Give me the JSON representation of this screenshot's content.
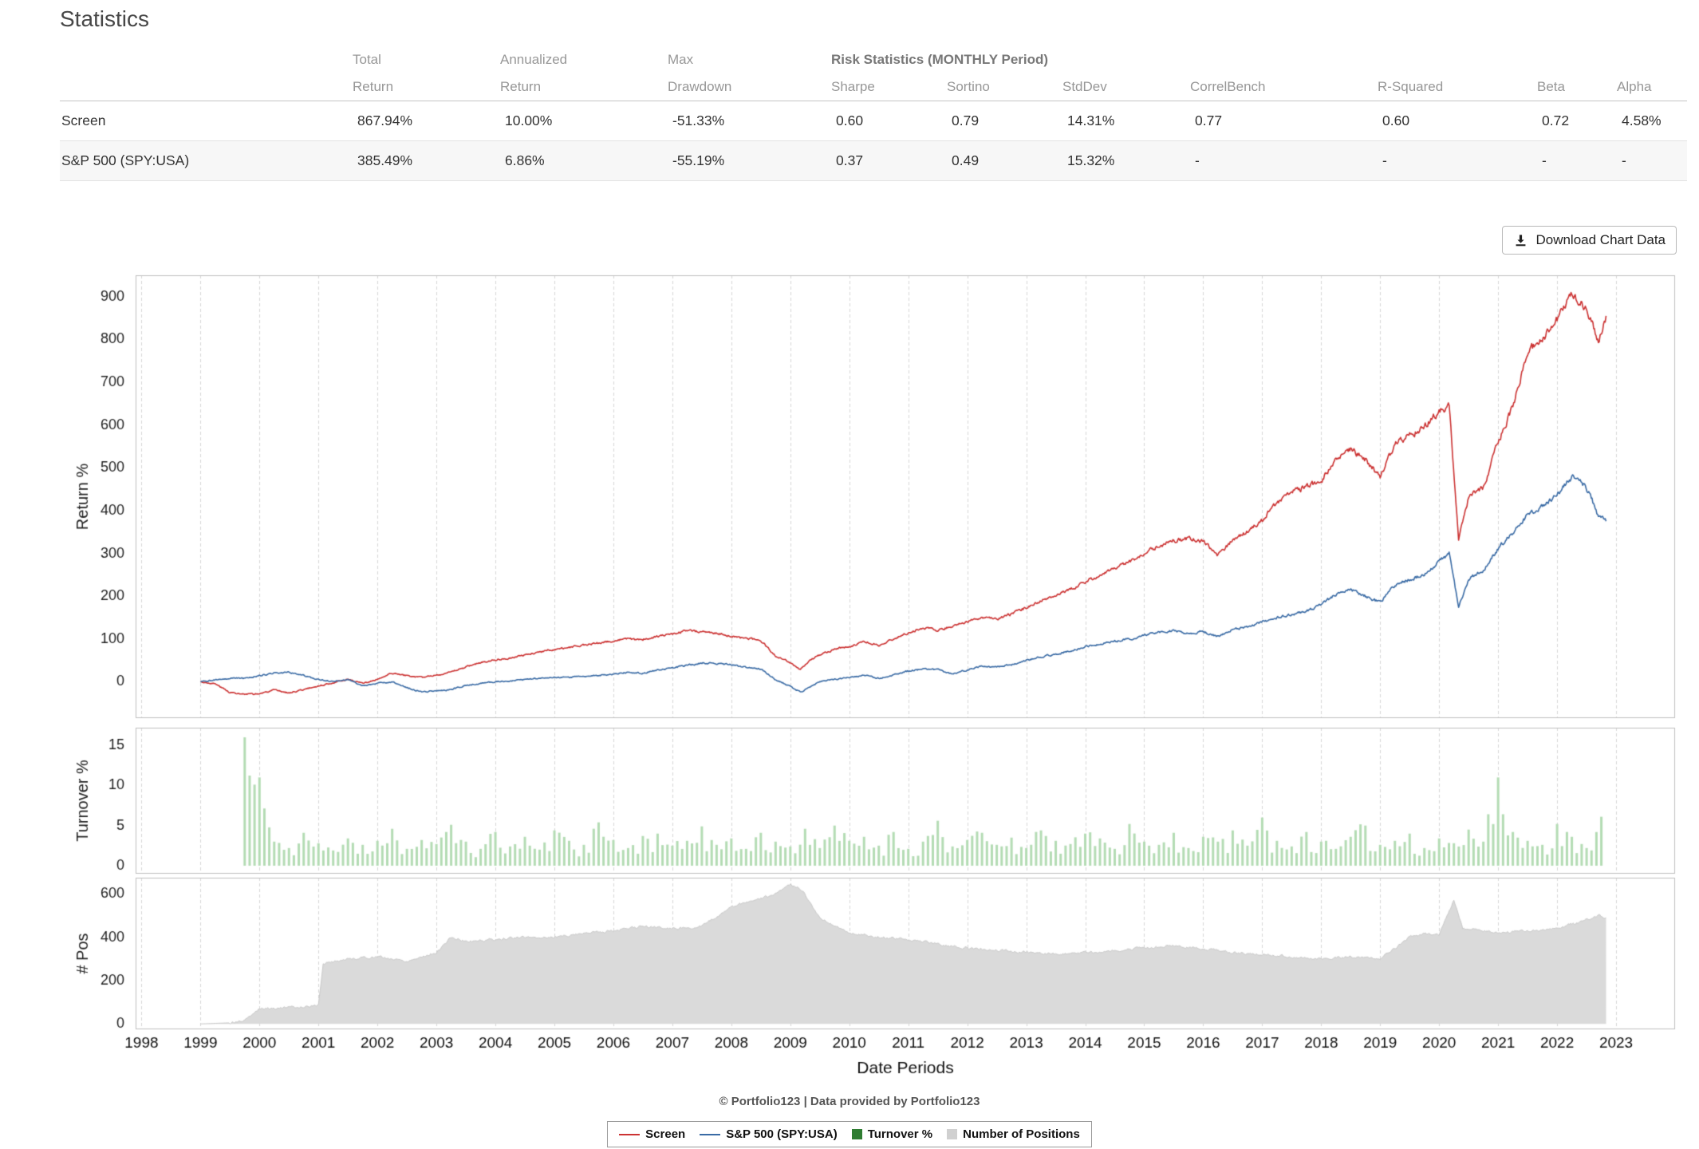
{
  "page_title": "Statistics",
  "toolbar": {
    "download_label": "Download Chart Data"
  },
  "table": {
    "headers": {
      "total_l1": "Total",
      "total_l2": "Return",
      "annualized_l1": "Annualized",
      "annualized_l2": "Return",
      "max_l1": "Max",
      "max_l2": "Drawdown",
      "risk_group": "Risk Statistics (MONTHLY Period)",
      "sharpe": "Sharpe",
      "sortino": "Sortino",
      "stddev": "StdDev",
      "correlbench": "CorrelBench",
      "r_squared": "R-Squared",
      "beta": "Beta",
      "alpha": "Alpha"
    },
    "rows": [
      {
        "name": "Screen",
        "total_return": "867.94%",
        "annualized_return": "10.00%",
        "max_drawdown": "-51.33%",
        "sharpe": "0.60",
        "sortino": "0.79",
        "stddev": "14.31%",
        "correlbench": "0.77",
        "r_squared": "0.60",
        "beta": "0.72",
        "alpha": "4.58%"
      },
      {
        "name": "S&P 500 (SPY:USA)",
        "total_return": "385.49%",
        "annualized_return": "6.86%",
        "max_drawdown": "-55.19%",
        "sharpe": "0.37",
        "sortino": "0.49",
        "stddev": "15.32%",
        "correlbench": "-",
        "r_squared": "-",
        "beta": "-",
        "alpha": "-"
      }
    ]
  },
  "chart_data": {
    "type": "line",
    "xlabel": "Date Periods",
    "xlim": [
      1997.9,
      2024.0
    ],
    "x_ticks": [
      1998,
      1999,
      2000,
      2001,
      2002,
      2003,
      2004,
      2005,
      2006,
      2007,
      2008,
      2009,
      2010,
      2011,
      2012,
      2013,
      2014,
      2015,
      2016,
      2017,
      2018,
      2019,
      2020,
      2021,
      2022,
      2023
    ],
    "grid": "vertical-dashed",
    "panels": [
      {
        "name": "returns",
        "kind": "line",
        "ylabel": "Return %",
        "ylim": [
          -85,
          950
        ],
        "yticks": [
          0,
          100,
          200,
          300,
          400,
          500,
          600,
          700,
          800,
          900
        ],
        "x": [
          1999,
          1999.25,
          1999.5,
          1999.75,
          2000,
          2000.25,
          2000.5,
          2000.75,
          2001,
          2001.25,
          2001.5,
          2001.75,
          2002,
          2002.25,
          2002.5,
          2002.75,
          2003,
          2003.25,
          2003.5,
          2003.75,
          2004,
          2004.25,
          2004.5,
          2004.75,
          2005,
          2005.25,
          2005.5,
          2005.75,
          2006,
          2006.25,
          2006.5,
          2006.75,
          2007,
          2007.25,
          2007.5,
          2007.75,
          2008,
          2008.25,
          2008.5,
          2008.75,
          2009,
          2009.17,
          2009.33,
          2009.5,
          2009.75,
          2010,
          2010.25,
          2010.5,
          2010.75,
          2011,
          2011.25,
          2011.5,
          2011.75,
          2012,
          2012.25,
          2012.5,
          2012.75,
          2013,
          2013.25,
          2013.5,
          2013.75,
          2014,
          2014.25,
          2014.5,
          2014.75,
          2015,
          2015.25,
          2015.5,
          2015.75,
          2016,
          2016.25,
          2016.5,
          2016.75,
          2017,
          2017.25,
          2017.5,
          2017.75,
          2018,
          2018.25,
          2018.5,
          2018.75,
          2019,
          2019.25,
          2019.5,
          2019.75,
          2020,
          2020.17,
          2020.33,
          2020.5,
          2020.75,
          2021,
          2021.25,
          2021.5,
          2021.75,
          2022,
          2022.25,
          2022.42,
          2022.58,
          2022.7,
          2022.83
        ],
        "series": [
          {
            "name": "Screen",
            "color": "#cc3333",
            "y": [
              0,
              -5,
              -25,
              -30,
              -28,
              -20,
              -26,
              -18,
              -10,
              -2,
              6,
              -4,
              5,
              20,
              14,
              10,
              16,
              22,
              35,
              45,
              52,
              56,
              62,
              70,
              76,
              80,
              86,
              90,
              96,
              100,
              99,
              105,
              112,
              120,
              117,
              114,
              106,
              102,
              96,
              60,
              45,
              28,
              50,
              62,
              76,
              82,
              95,
              86,
              100,
              114,
              126,
              120,
              130,
              140,
              150,
              146,
              158,
              174,
              190,
              202,
              216,
              234,
              250,
              264,
              280,
              300,
              318,
              330,
              334,
              328,
              296,
              330,
              352,
              376,
              420,
              444,
              455,
              470,
              520,
              545,
              520,
              480,
              556,
              576,
              596,
              632,
              645,
              335,
              430,
              455,
              560,
              645,
              770,
              800,
              845,
              900,
              880,
              850,
              790,
              855
            ]
          },
          {
            "name": "S&P 500 (SPY:USA)",
            "color": "#3a6ba5",
            "y": [
              0,
              4,
              9,
              8,
              14,
              20,
              22,
              15,
              5,
              0,
              6,
              -10,
              -4,
              0,
              -14,
              -24,
              -22,
              -18,
              -8,
              -4,
              0,
              2,
              5,
              8,
              10,
              10,
              13,
              15,
              18,
              22,
              20,
              27,
              32,
              38,
              44,
              42,
              40,
              34,
              30,
              5,
              -10,
              -25,
              -12,
              0,
              6,
              10,
              15,
              8,
              16,
              25,
              30,
              28,
              18,
              28,
              37,
              34,
              40,
              50,
              58,
              65,
              72,
              82,
              88,
              95,
              100,
              108,
              115,
              120,
              112,
              118,
              105,
              122,
              128,
              140,
              150,
              158,
              165,
              180,
              205,
              215,
              200,
              185,
              225,
              240,
              250,
              280,
              300,
              175,
              240,
              262,
              310,
              350,
              390,
              410,
              440,
              478,
              470,
              430,
              385,
              375
            ]
          }
        ]
      },
      {
        "name": "turnover",
        "kind": "bar",
        "ylabel": "Turnover %",
        "ylim": [
          -1,
          17.2
        ],
        "yticks": [
          0,
          5,
          10,
          15
        ],
        "color": "#b4dcb4",
        "x_start": 1999.75,
        "x_step": 0.25,
        "values": [
          16,
          11,
          3,
          2.2,
          4.1,
          2.8,
          1.9,
          3.4,
          2.6,
          3.1,
          4.6,
          2.1,
          3.2,
          2.7,
          5.1,
          3.0,
          2.1,
          4.2,
          2.4,
          3.6,
          2.0,
          4.4,
          3.1,
          2.6,
          5.4,
          3.2,
          2.2,
          3.7,
          4.0,
          2.5,
          3.1,
          4.9,
          2.6,
          3.4,
          2.1,
          4.1,
          3.0,
          2.4,
          4.6,
          2.2,
          5.0,
          3.1,
          3.6,
          2.5,
          4.2,
          2.1,
          3.0,
          5.6,
          2.4,
          3.2,
          4.1,
          2.6,
          3.5,
          2.2,
          4.4,
          3.1,
          2.7,
          4.0,
          3.4,
          2.1,
          5.2,
          3.0,
          2.6,
          4.1,
          2.2,
          3.6,
          3.0,
          4.4,
          2.5,
          6.0,
          3.1,
          2.4,
          4.2,
          3.0,
          2.1,
          3.6,
          5.0,
          2.6,
          3.1,
          4.0,
          2.2,
          3.4,
          2.8,
          4.5,
          3.0,
          11.0,
          4.2,
          3.1,
          2.6,
          5.2,
          3.6,
          2.2,
          6.1
        ]
      },
      {
        "name": "positions",
        "kind": "area",
        "ylabel": "# Pos",
        "ylim": [
          -25,
          675
        ],
        "yticks": [
          0,
          200,
          400,
          600
        ],
        "color": "#dadada",
        "x": [
          1999,
          1999.5,
          1999.75,
          2000,
          2000.5,
          2001,
          2001.08,
          2001.5,
          2002,
          2002.5,
          2003,
          2003.25,
          2003.5,
          2004,
          2004.5,
          2005,
          2005.5,
          2006,
          2006.5,
          2007,
          2007.5,
          2008,
          2008.5,
          2008.75,
          2009,
          2009.2,
          2009.5,
          2010,
          2010.5,
          2011,
          2011.5,
          2012,
          2012.5,
          2013,
          2013.5,
          2014,
          2014.5,
          2015,
          2015.5,
          2016,
          2016.5,
          2017,
          2017.5,
          2018,
          2018.5,
          2019,
          2019.5,
          2019.75,
          2020,
          2020.25,
          2020.4,
          2020.75,
          2021,
          2021.5,
          2022,
          2022.25,
          2022.5,
          2022.7,
          2022.83
        ],
        "y": [
          0,
          5,
          15,
          70,
          75,
          85,
          280,
          300,
          310,
          290,
          330,
          400,
          380,
          390,
          400,
          400,
          420,
          430,
          450,
          440,
          450,
          540,
          580,
          600,
          640,
          620,
          490,
          420,
          400,
          390,
          370,
          350,
          340,
          330,
          320,
          330,
          340,
          350,
          360,
          350,
          330,
          320,
          310,
          300,
          310,
          300,
          400,
          420,
          410,
          570,
          440,
          430,
          420,
          430,
          440,
          460,
          480,
          500,
          490
        ]
      }
    ]
  },
  "footer_credit": "© Portfolio123 | Data provided by Portfolio123",
  "legend": {
    "items": [
      {
        "label": "Screen",
        "marker": "line",
        "color": "#cc3333"
      },
      {
        "label": "S&P 500 (SPY:USA)",
        "marker": "line",
        "color": "#3a6ba5"
      },
      {
        "label": "Turnover %",
        "marker": "square",
        "color": "#2f7d32"
      },
      {
        "label": "Number of Positions",
        "marker": "square",
        "color": "#d0d0d0"
      }
    ]
  }
}
